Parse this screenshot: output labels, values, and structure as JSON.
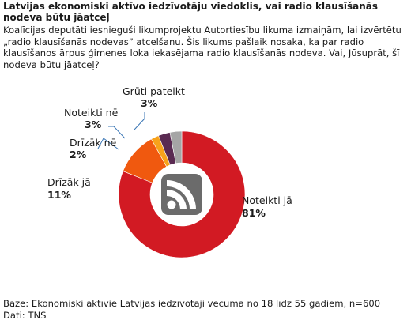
{
  "chart_data": {
    "type": "pie",
    "title": "Latvijas ekonomiski aktīvo iedzīvotāju viedoklis, vai radio klausīšanās nodeva būtu jāatceļ",
    "subtitle": "Koalīcijas deputāti iesnieguši likumprojektu Autortiesību likuma izmaiņām, lai izvērtētu „radio klausīšanās nodevas” atcelšanu. Šis likums pašlaik nosaka, ka par radio klausīšanos ārpus ģimenes loka iekasējama radio klausīšanās nodeva. Vai, Jūsuprāt, šī nodeva būtu jāatceļ?",
    "slices": [
      {
        "label": "Noteikti jā",
        "value": 81,
        "value_label": "81%",
        "color": "#d21a23"
      },
      {
        "label": "Drīzāk jā",
        "value": 11,
        "value_label": "11%",
        "color": "#f0590f"
      },
      {
        "label": "Drīzāk nē",
        "value": 2,
        "value_label": "2%",
        "color": "#f7a21b"
      },
      {
        "label": "Noteikti nē",
        "value": 3,
        "value_label": "3%",
        "color": "#5a2a52"
      },
      {
        "label": "Grūti pateikt",
        "value": 3,
        "value_label": "3%",
        "color": "#a5a5a5"
      }
    ],
    "legend": "none",
    "center_icon": "rss-feed-icon",
    "footer_base": "Bāze: Ekonomiski aktīvie Latvijas iedzīvotāji vecumā no 18 līdz 55 gadiem, n=600",
    "footer_source": "Dati: TNS"
  }
}
